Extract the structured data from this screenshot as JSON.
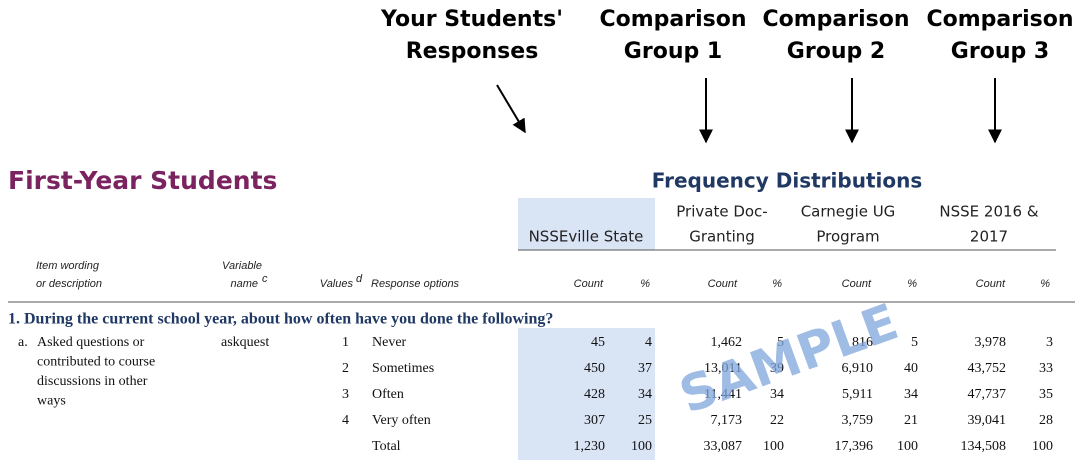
{
  "annotations": [
    {
      "lines": [
        "Your Students'",
        "Responses"
      ]
    },
    {
      "lines": [
        "Comparison",
        "Group 1"
      ]
    },
    {
      "lines": [
        "Comparison",
        "Group 2"
      ]
    },
    {
      "lines": [
        "Comparison",
        "Group 3"
      ]
    }
  ],
  "header": {
    "title": "First-Year Students",
    "subtitle": "Frequency Distributions"
  },
  "groups": [
    {
      "lines": [
        "NSSEville State"
      ]
    },
    {
      "lines": [
        "Private Doc-",
        "Granting"
      ]
    },
    {
      "lines": [
        "Carnegie UG",
        "Program"
      ]
    },
    {
      "lines": [
        "NSSE 2016 &",
        "2017"
      ]
    }
  ],
  "column_headers": {
    "item_wording": [
      "Item wording",
      "or description"
    ],
    "variable_name": [
      "Variable",
      "name"
    ],
    "variable_note": "c",
    "values": "Values",
    "values_note": "d",
    "response_options": "Response options",
    "count": "Count",
    "percent": "%"
  },
  "question": "1. During the current school year, about how often have you done the following?",
  "item": {
    "letter": "a.",
    "wording": [
      "Asked questions or",
      "contributed to course",
      "discussions in other",
      "ways"
    ],
    "variable": "askquest",
    "rows": [
      {
        "value": 1,
        "option": "Never",
        "cells": [
          "45",
          "4",
          "1,462",
          "5",
          "816",
          "5",
          "3,978",
          "3"
        ]
      },
      {
        "value": 2,
        "option": "Sometimes",
        "cells": [
          "450",
          "37",
          "13,011",
          "39",
          "6,910",
          "40",
          "43,752",
          "33"
        ]
      },
      {
        "value": 3,
        "option": "Often",
        "cells": [
          "428",
          "34",
          "11,441",
          "34",
          "5,911",
          "34",
          "47,737",
          "35"
        ]
      },
      {
        "value": 4,
        "option": "Very often",
        "cells": [
          "307",
          "25",
          "7,173",
          "22",
          "3,759",
          "21",
          "39,041",
          "28"
        ]
      },
      {
        "option": "Total",
        "cells": [
          "1,230",
          "100",
          "33,087",
          "100",
          "17,396",
          "100",
          "134,508",
          "100"
        ]
      }
    ]
  },
  "watermark": "SAMPLE"
}
